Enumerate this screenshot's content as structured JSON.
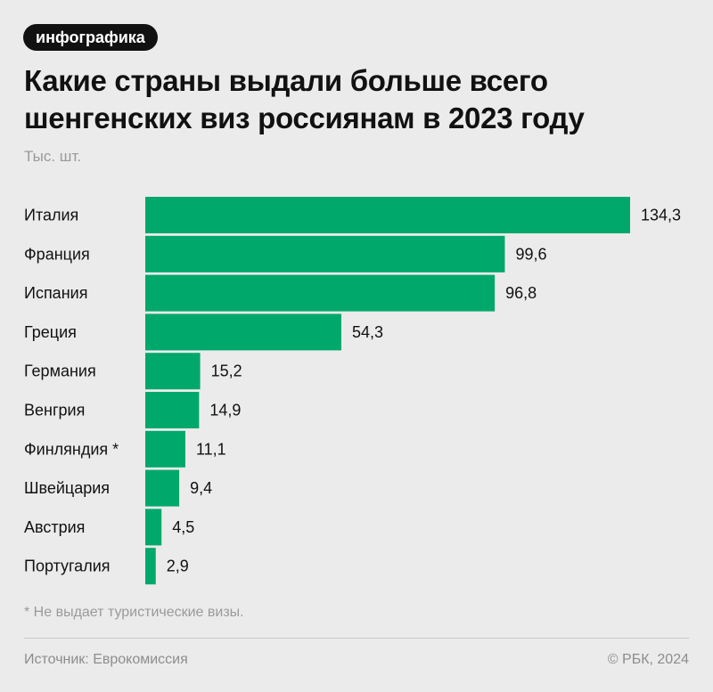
{
  "badge": "инфографика",
  "title_lines": [
    "Какие страны выдали больше всего",
    "шенгенских виз россиянам в 2023 году"
  ],
  "unit": "Тыс. шт.",
  "footnote": "* Не выдает туристические визы.",
  "source": "Источник: Еврокомиссия",
  "copyright": "© РБК, 2024",
  "colors": {
    "bar": "#00a86b",
    "background": "#ebebeb",
    "axis": "#111111"
  },
  "chart_data": {
    "type": "bar",
    "orientation": "horizontal",
    "categories": [
      "Италия",
      "Франция",
      "Испания",
      "Греция",
      "Германия",
      "Венгрия",
      "Финляндия *",
      "Швейцария",
      "Австрия",
      "Португалия"
    ],
    "values": [
      134.3,
      99.6,
      96.8,
      54.3,
      15.2,
      14.9,
      11.1,
      9.4,
      4.5,
      2.9
    ],
    "value_labels": [
      "134,3",
      "99,6",
      "96,8",
      "54,3",
      "15,2",
      "14,9",
      "11,1",
      "9,4",
      "4,5",
      "2,9"
    ],
    "xlim": [
      0,
      134.3
    ],
    "ylabel": "Тыс. шт.",
    "grid": false,
    "legend": false
  }
}
